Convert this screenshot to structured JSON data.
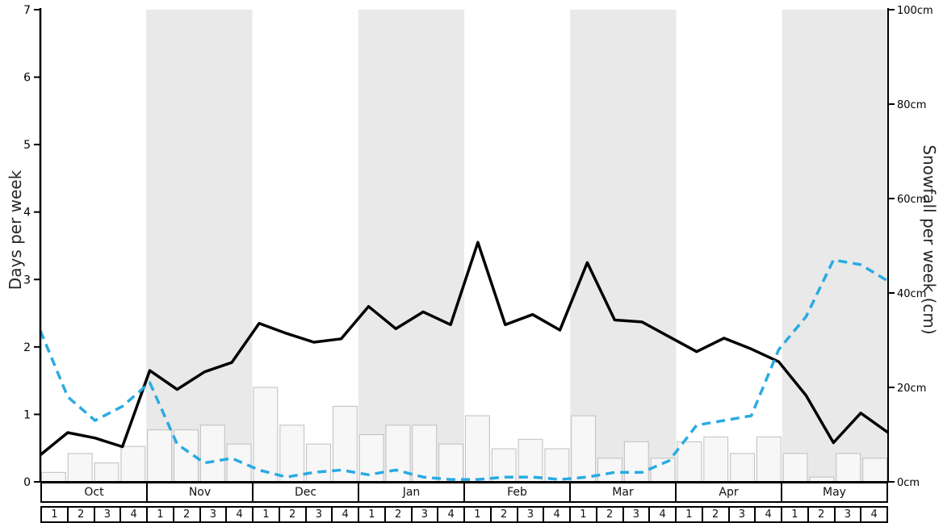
{
  "chart_data": {
    "type": "line",
    "months": [
      "Oct",
      "Nov",
      "Dec",
      "Jan",
      "Feb",
      "Mar",
      "Apr",
      "May"
    ],
    "week_labels": [
      "1",
      "2",
      "3",
      "4"
    ],
    "left_axis": {
      "label": "Days per week",
      "min": 0,
      "max": 7,
      "ticks": [
        "0",
        "1",
        "2",
        "3",
        "4",
        "5",
        "6",
        "7"
      ],
      "tick_values": [
        0,
        1,
        2,
        3,
        4,
        5,
        6,
        7
      ]
    },
    "right_axis": {
      "label": "Snowfall per week (cm)",
      "min": 0,
      "max": 100,
      "ticks": [
        "0cm",
        "20cm",
        "40cm",
        "60cm",
        "80cm",
        "100cm"
      ],
      "tick_values": [
        0,
        20,
        40,
        60,
        80,
        100
      ]
    },
    "band_color": "#e9e9e9",
    "grid": false,
    "legend": "none",
    "series": [
      {
        "name": "snowy-days-per-week",
        "type": "line",
        "axis": "left",
        "color": "#000000",
        "dashed": false,
        "values": [
          0.4,
          0.73,
          0.65,
          0.52,
          1.65,
          1.37,
          1.63,
          1.77,
          2.35,
          2.2,
          2.07,
          2.12,
          2.6,
          2.27,
          2.52,
          2.33,
          3.55,
          2.33,
          2.48,
          2.25,
          3.25,
          2.4,
          2.37,
          2.15,
          1.93,
          2.13,
          1.97,
          1.78,
          1.28,
          0.58,
          1.02,
          0.73
        ]
      },
      {
        "name": "snowfall-cm-per-week",
        "type": "line",
        "axis": "right",
        "color": "#29abe2",
        "dashed": true,
        "values": [
          32,
          18,
          13,
          16,
          21,
          8,
          4,
          5,
          2.5,
          1,
          2,
          2.5,
          1.5,
          2.5,
          1,
          0.5,
          0.5,
          1,
          1,
          0.5,
          1,
          2,
          2,
          4.5,
          12,
          13,
          14,
          28,
          35,
          47,
          46,
          42.5
        ]
      },
      {
        "name": "snowfall-bars",
        "type": "bar",
        "axis": "right",
        "color": "#f7f7f7",
        "border": "#bfbfbf",
        "values": [
          2,
          6,
          4,
          7.5,
          11,
          11,
          12,
          8,
          20,
          12,
          8,
          16,
          10,
          12,
          12,
          8,
          14,
          7,
          9,
          7,
          14,
          5,
          8.5,
          5,
          8.5,
          9.5,
          6,
          9.5,
          6,
          1,
          6,
          5
        ]
      }
    ]
  }
}
